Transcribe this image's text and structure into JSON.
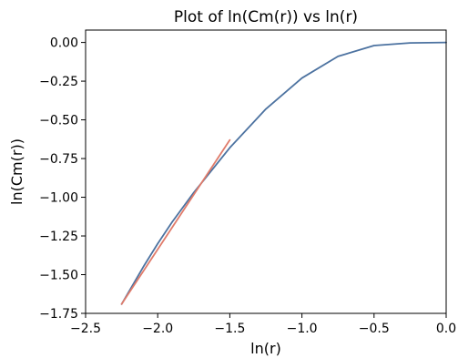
{
  "chart_data": {
    "type": "line",
    "title": "Plot of ln(Cm(r)) vs ln(r)",
    "xlabel": "ln(r)",
    "ylabel": "ln(Cm(r))",
    "xlim": [
      -2.5,
      0.0
    ],
    "ylim": [
      -1.75,
      0.08
    ],
    "grid": false,
    "xticks": [
      -2.5,
      -2.0,
      -1.5,
      -1.0,
      -0.5,
      0.0
    ],
    "xtick_labels": [
      "−2.5",
      "−2.0",
      "−1.5",
      "−1.0",
      "−0.5",
      "0.0"
    ],
    "yticks": [
      0.0,
      -0.25,
      -0.5,
      -0.75,
      -1.0,
      -1.25,
      -1.5,
      -1.75
    ],
    "ytick_labels": [
      "0.00",
      "−0.25",
      "−0.50",
      "−0.75",
      "−1.00",
      "−1.25",
      "−1.50",
      "−1.75"
    ],
    "series": [
      {
        "color": "#4c72a0",
        "x": [
          -2.25,
          -2.1,
          -2.0,
          -1.9,
          -1.75,
          -1.5,
          -1.25,
          -1.0,
          -0.75,
          -0.5,
          -0.25,
          0.0
        ],
        "y": [
          -1.69,
          -1.45,
          -1.3,
          -1.16,
          -0.97,
          -0.68,
          -0.43,
          -0.23,
          -0.09,
          -0.02,
          -0.003,
          0.0
        ]
      },
      {
        "color": "#e07b6a",
        "x": [
          -2.25,
          -1.5
        ],
        "y": [
          -1.69,
          -0.63
        ]
      }
    ]
  }
}
